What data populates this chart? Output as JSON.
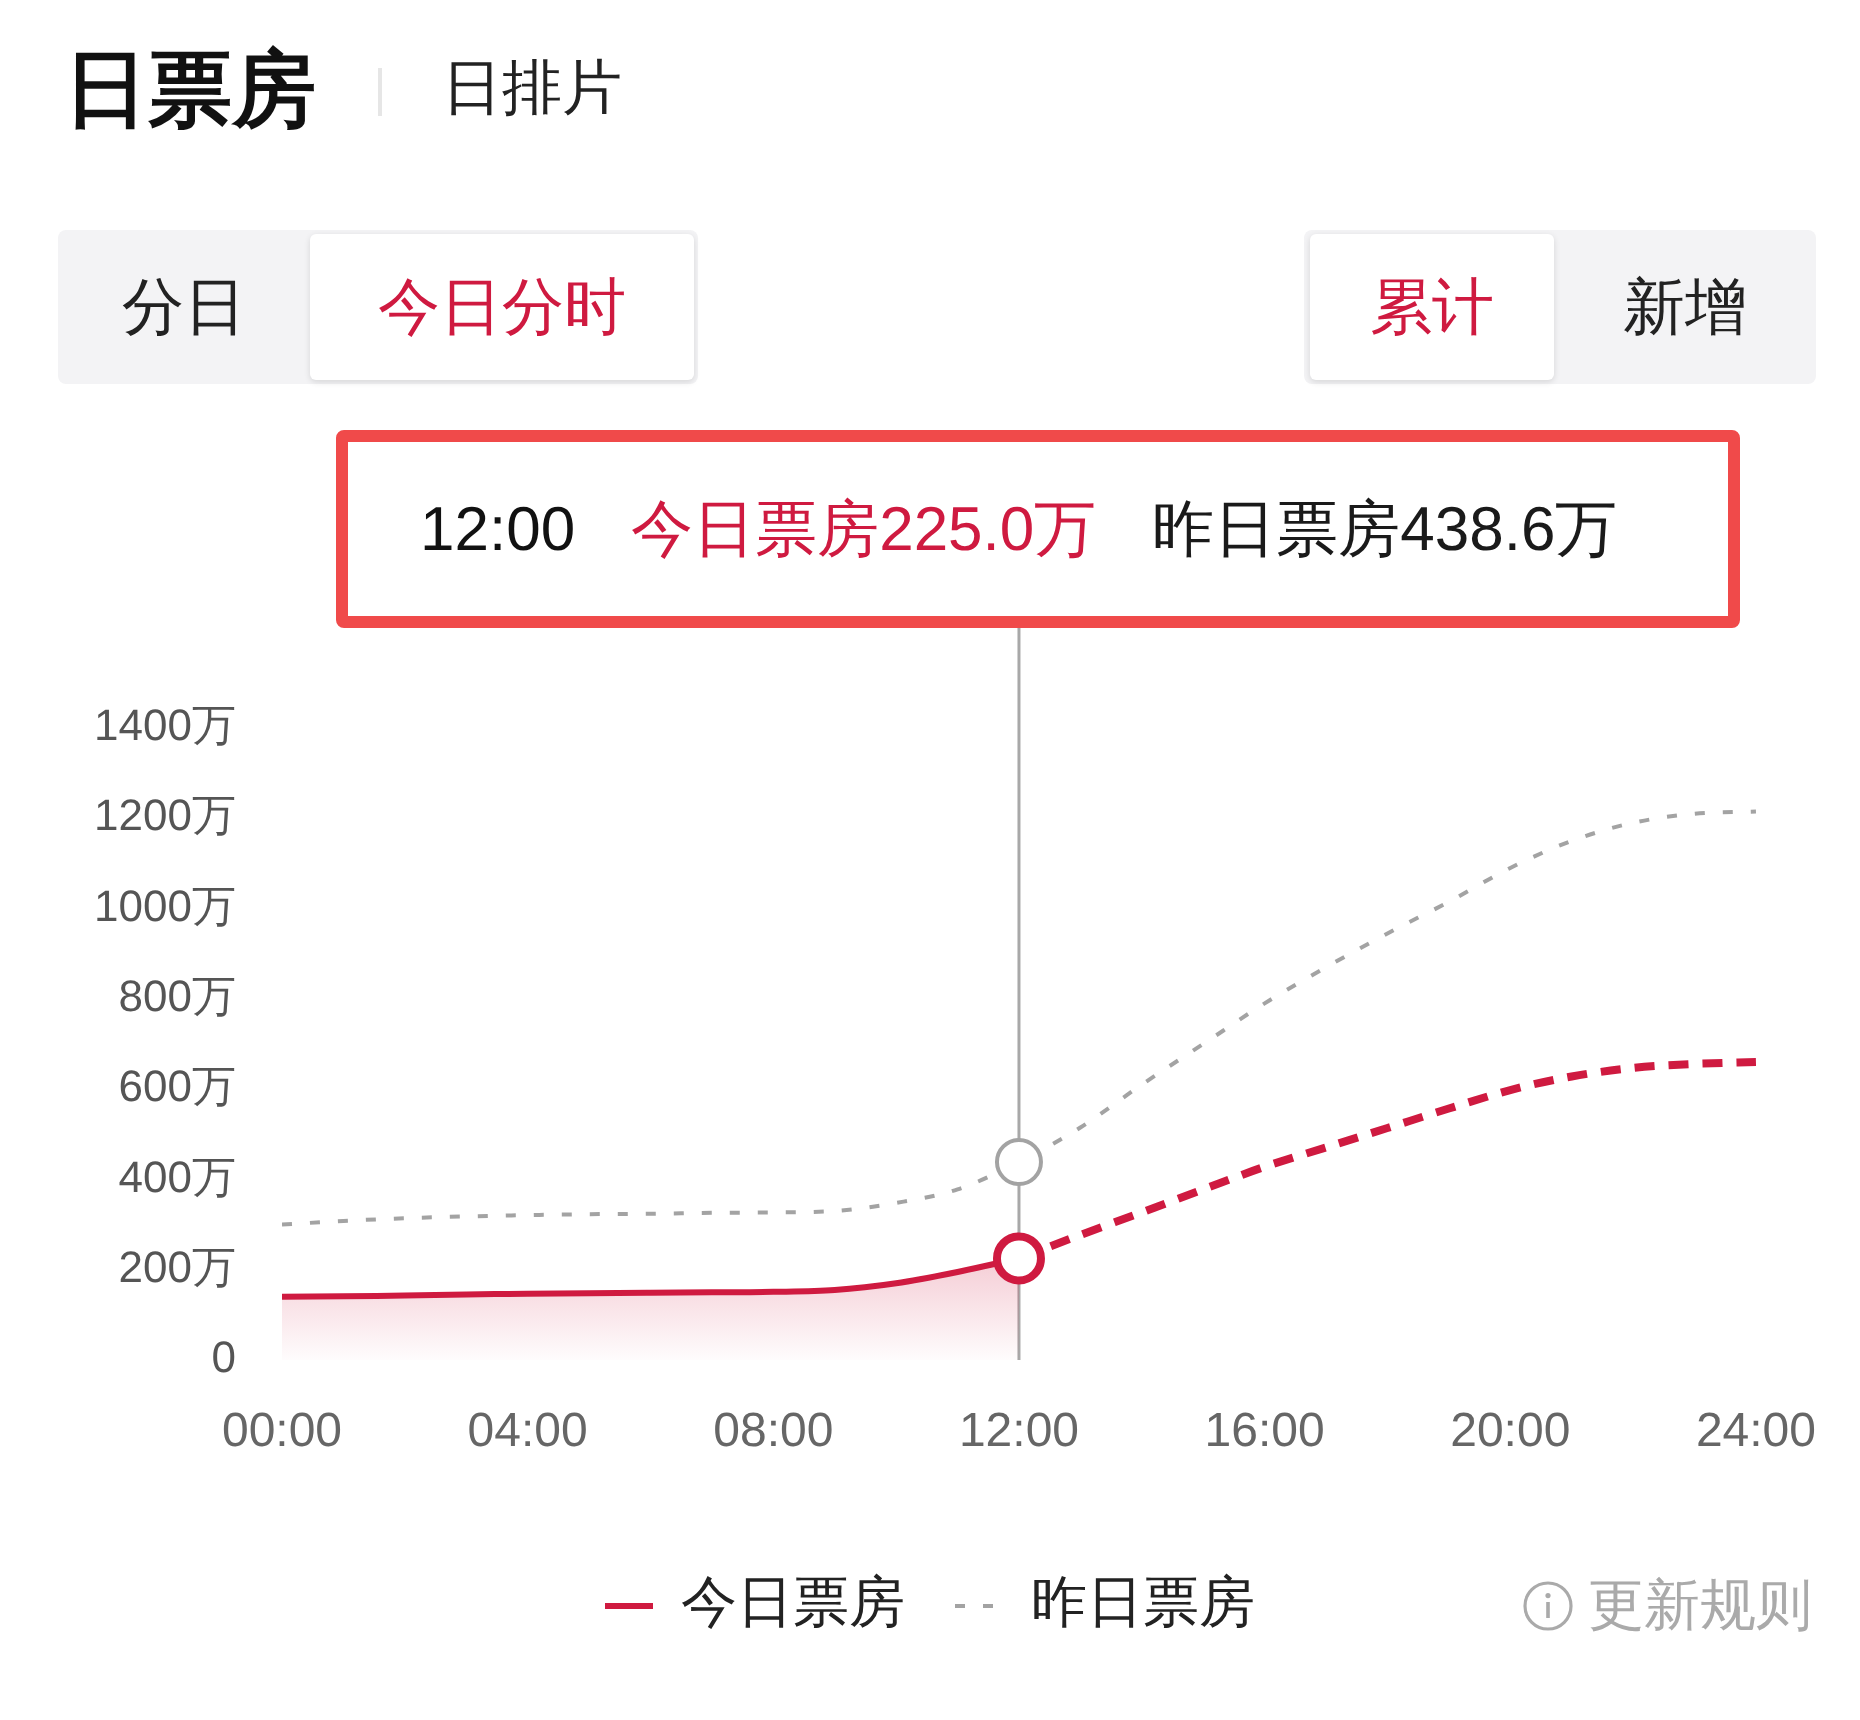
{
  "chart_data": {
    "type": "line",
    "title": "日票房",
    "annotations": [
      "日排片",
      "分日",
      "今日分时",
      "累计",
      "新增",
      "12:00",
      "今日票房225.0万",
      "昨日票房438.6万",
      "更新规则"
    ],
    "x": [
      0,
      1,
      2,
      3,
      4,
      5,
      6,
      7,
      8,
      9,
      10,
      11,
      12,
      13,
      14,
      15,
      16,
      17,
      18,
      19,
      20,
      21,
      22,
      23,
      24
    ],
    "xlim": [
      0,
      24
    ],
    "xticks": [
      {
        "value": 0,
        "label": "00:00"
      },
      {
        "value": 4,
        "label": "04:00"
      },
      {
        "value": 8,
        "label": "08:00"
      },
      {
        "value": 12,
        "label": "12:00"
      },
      {
        "value": 16,
        "label": "16:00"
      },
      {
        "value": 20,
        "label": "20:00"
      },
      {
        "value": 24,
        "label": "24:00"
      }
    ],
    "ylim": [
      0,
      1400
    ],
    "yticks": [
      0,
      {
        "value": 200,
        "label": "200万"
      },
      {
        "value": 400,
        "label": "400万"
      },
      {
        "value": 600,
        "label": "600万"
      },
      {
        "value": 800,
        "label": "800万"
      },
      {
        "value": 1000,
        "label": "1000万"
      },
      {
        "value": 1200,
        "label": "1200万"
      },
      {
        "value": 1400,
        "label": "1400万"
      }
    ],
    "series": [
      {
        "name": "今日票房",
        "type": "area",
        "color": "#cf1a40",
        "values": [
          140,
          141,
          143,
          145,
          147,
          148,
          149,
          150,
          151,
          155,
          170,
          195,
          225,
          null,
          null,
          null,
          null,
          null,
          null,
          null,
          null,
          null,
          null,
          null,
          null
        ]
      },
      {
        "color": "#cf1a40",
        "line_style": "dashed",
        "values": [
          null,
          null,
          null,
          null,
          null,
          null,
          null,
          null,
          null,
          null,
          null,
          null,
          225,
          277,
          327,
          378,
          428,
          471,
          514,
          557,
          598,
          628,
          647,
          656,
          660
        ]
      },
      {
        "name": "昨日票房",
        "color": "#a3a3a3",
        "line_style": "dashed",
        "values": [
          300,
          308,
          314,
          318,
          321,
          323,
          324,
          326,
          327,
          330,
          348,
          378,
          438.6,
          515,
          610,
          700,
          790,
          870,
          945,
          1015,
          1090,
          1150,
          1190,
          1210,
          1215
        ]
      }
    ],
    "ref_lines": [
      {
        "axis": "x",
        "value": 12,
        "color": "#a8a8a8"
      }
    ],
    "legend": "bottom"
  }
}
